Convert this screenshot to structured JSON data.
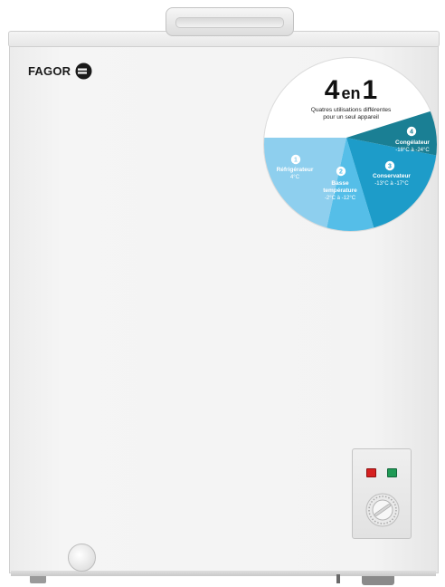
{
  "product": {
    "brand": "FAGOR"
  },
  "badge": {
    "headline_number": "4",
    "headline_word": "en",
    "headline_number2": "1",
    "subtitle_line1": "Quatres utilisations différentes",
    "subtitle_line2": "pour un seul appareil",
    "segments": [
      {
        "number": "1",
        "name": "Réfrigérateur",
        "name2": "",
        "temp": "4°C",
        "color": "#8ecfee"
      },
      {
        "number": "2",
        "name": "Basse",
        "name2": "température",
        "temp": "-2°C à -12°C",
        "color": "#55bee8"
      },
      {
        "number": "3",
        "name": "Conservateur",
        "name2": "",
        "temp": "-13°C à -17°C",
        "color": "#1d9cc9"
      },
      {
        "number": "4",
        "name": "Congélateur",
        "name2": "",
        "temp": "-18°C à -24°C",
        "color": "#1a7f94"
      }
    ]
  },
  "colors": {
    "led_red": "#d62020",
    "led_green": "#1f9a55"
  }
}
